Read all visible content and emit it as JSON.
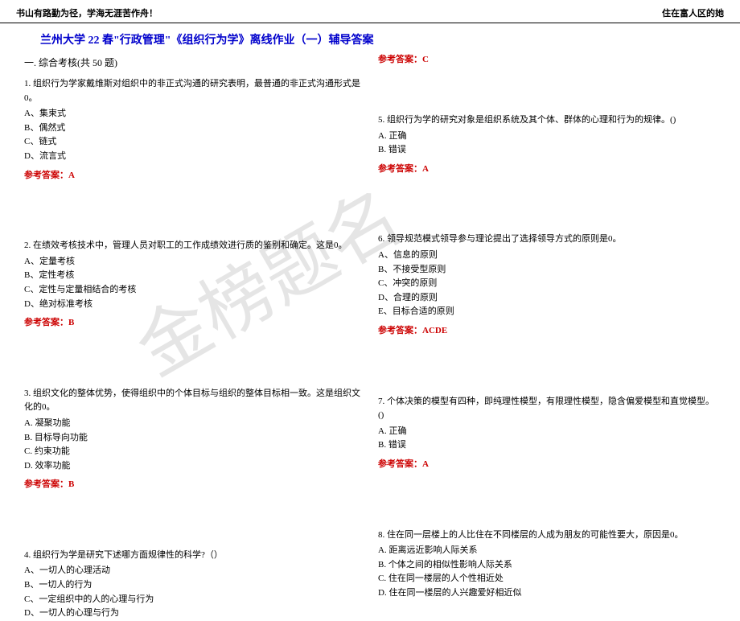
{
  "header": {
    "left": "书山有路勤为径，学海无涯苦作舟！",
    "right": "住在富人区的她"
  },
  "title": "兰州大学 22 春\"行政管理\"《组织行为学》离线作业（一）辅导答案",
  "section_header": "一. 综合考核(共 50 题)",
  "watermark": "金榜题名",
  "left_col": {
    "q1": {
      "text": "1. 组织行为学家戴维斯对组织中的非正式沟通的研究表明，最普通的非正式沟通形式是0。",
      "opts": [
        "A、集束式",
        "B、偶然式",
        "C、链式",
        "D、流言式"
      ],
      "answer": "参考答案：A"
    },
    "q2": {
      "text": "2. 在绩效考核技术中，管理人员对职工的工作成绩效进行质的鉴别和确定。这是0。",
      "opts": [
        "A、定量考核",
        "B、定性考核",
        "C、定性与定量相结合的考核",
        "D、绝对标准考核"
      ],
      "answer": "参考答案：B"
    },
    "q3": {
      "text": "3. 组织文化的整体优势，使得组织中的个体目标与组织的整体目标相一致。这是组织文化的0。",
      "opts": [
        "A. 凝聚功能",
        "B. 目标导向功能",
        "C. 约束功能",
        "D. 效率功能"
      ],
      "answer": "参考答案：B"
    },
    "q4": {
      "text": "4. 组织行为学是研究下述哪方面规律性的科学?（）",
      "opts": [
        "A、一切人的心理活动",
        "B、一切人的行为",
        "C、一定组织中的人的心理与行为",
        "D、一切人的心理与行为"
      ]
    }
  },
  "right_col": {
    "q4_ans": "参考答案：C",
    "q5": {
      "text": "5. 组织行为学的研究对象是组织系统及其个体、群体的心理和行为的规律。()",
      "opts": [
        "A. 正确",
        "B. 错误"
      ],
      "answer": "参考答案：A"
    },
    "q6": {
      "text": "6. 领导规范模式领导参与理论提出了选择领导方式的原则是0。",
      "opts": [
        "A、信息的原则",
        "B、不接受型原则",
        "C、冲突的原则",
        "D、合理的原则",
        "E、目标合适的原则"
      ],
      "answer": "参考答案：ACDE"
    },
    "q7": {
      "text": "7. 个体决策的模型有四种，即纯理性模型，有限理性模型，隐含偏爱模型和直觉模型。()",
      "opts": [
        "A. 正确",
        "B. 错误"
      ],
      "answer": "参考答案：A"
    },
    "q8": {
      "text": "8. 住在同一层楼上的人比住在不同楼层的人成为朋友的可能性要大，原因是0。",
      "opts": [
        "A. 距离远近影响人际关系",
        "B. 个体之间的相似性影响人际关系",
        "C. 住在同一楼层的人个性相近处",
        "D. 住在同一楼层的人兴趣爱好相近似"
      ]
    }
  },
  "colors": {
    "title_color": "#0000cc",
    "answer_color": "#cc0000",
    "text_color": "#000000",
    "watermark_color": "rgba(180,180,180,0.35)"
  }
}
